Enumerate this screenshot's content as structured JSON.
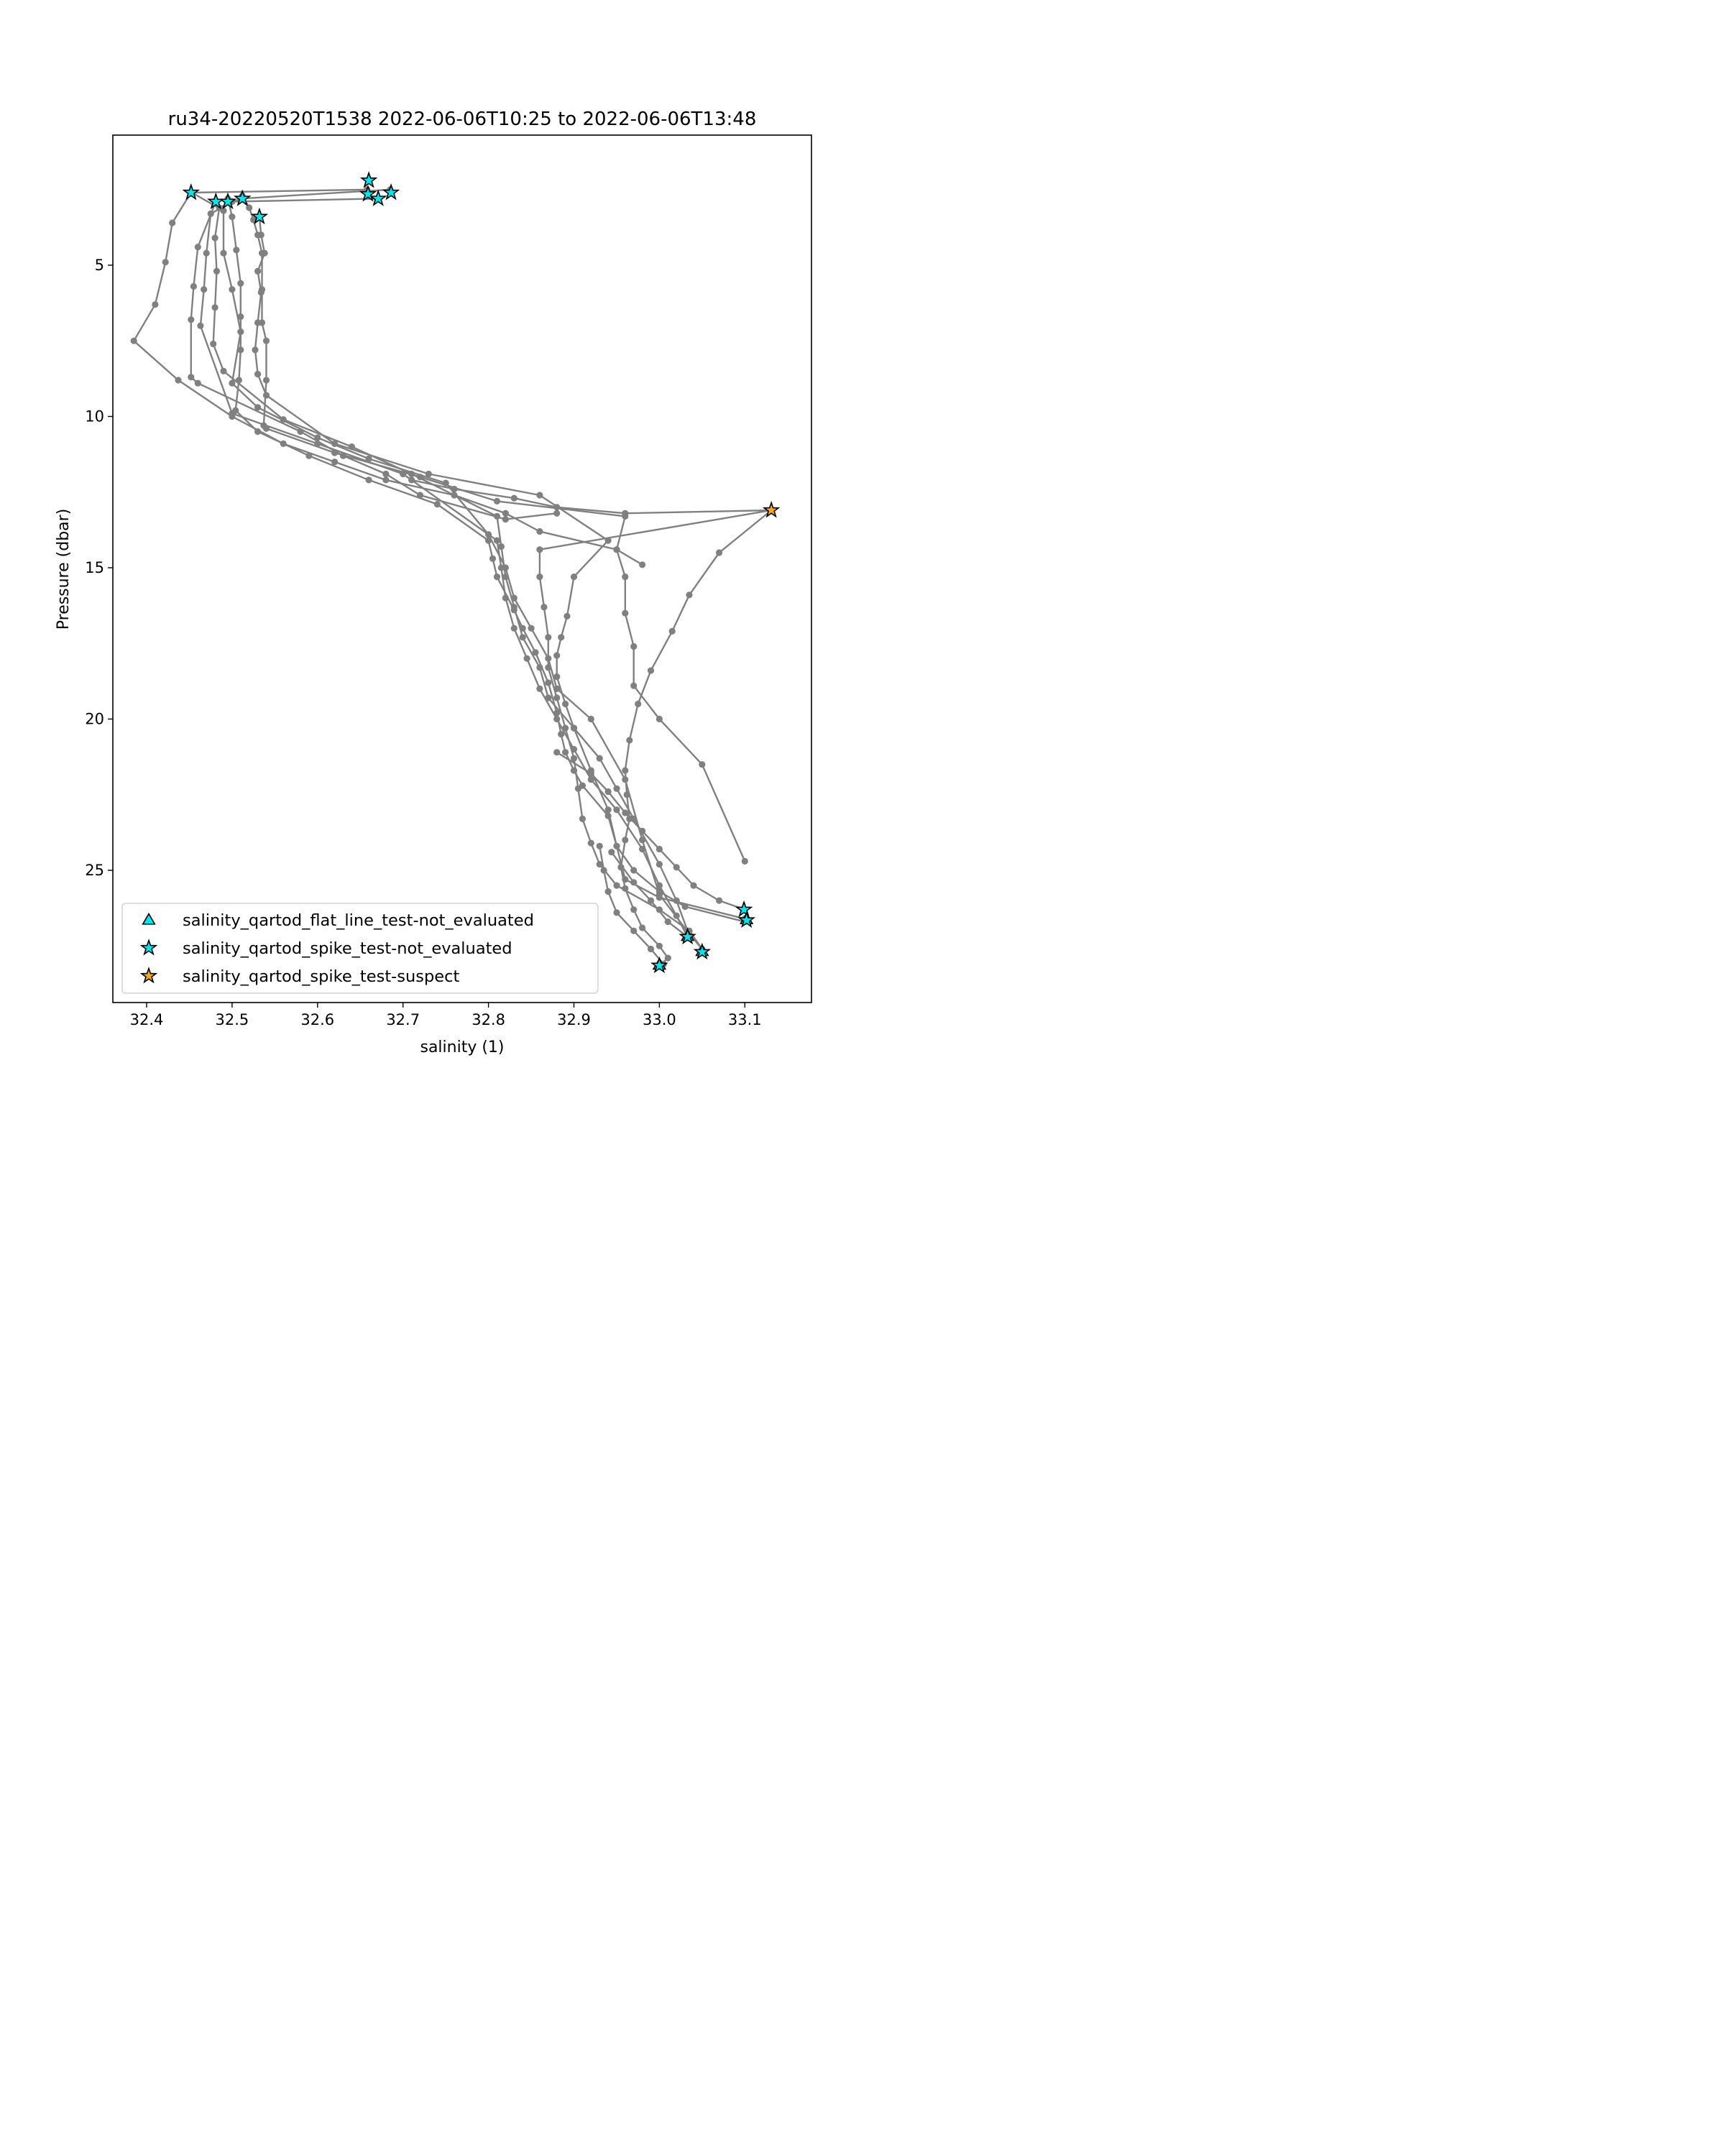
{
  "chart_data": {
    "type": "line",
    "title": "ru34-20220520T1538 2022-06-06T10:25 to 2022-06-06T13:48",
    "xlabel": "salinity (1)",
    "ylabel": "Pressure (dbar)",
    "xlim": [
      32.35,
      33.17
    ],
    "ylim": [
      29.3,
      0.7
    ],
    "y_inverted": true,
    "grid": false,
    "xticks": [
      32.4,
      32.5,
      32.6,
      32.7,
      32.8,
      32.9,
      33.0,
      33.1
    ],
    "xtick_labels": [
      "32.4",
      "32.5",
      "32.6",
      "32.7",
      "32.8",
      "32.9",
      "33.0",
      "33.1"
    ],
    "yticks": [
      5,
      10,
      15,
      20,
      25
    ],
    "ytick_labels": [
      "5",
      "10",
      "15",
      "20",
      "25"
    ],
    "line_color": "#808080",
    "legend_position": "lower left",
    "legend": [
      {
        "label": "salinity_qartod_flat_line_test-not_evaluated",
        "marker": "triangle",
        "color": "#00e5ee"
      },
      {
        "label": "salinity_qartod_spike_test-not_evaluated",
        "marker": "star",
        "color": "#00e5ee"
      },
      {
        "label": "salinity_qartod_spike_test-suspect",
        "marker": "star",
        "color": "#f5a623"
      }
    ],
    "series": [
      {
        "x": [
          32.452,
          32.43,
          32.422,
          32.41,
          32.385,
          32.437,
          32.5,
          32.56,
          32.62,
          32.68,
          32.76,
          32.82,
          32.86,
          32.95,
          32.98
        ],
        "y": [
          2.6,
          3.6,
          4.9,
          6.3,
          7.5,
          8.8,
          10.0,
          10.9,
          11.5,
          12.1,
          12.6,
          13.2,
          13.8,
          14.4,
          14.9
        ]
      },
      {
        "x": [
          32.481,
          32.46,
          32.455,
          32.452,
          32.452,
          32.46,
          32.58,
          32.63,
          32.68,
          32.72,
          32.82,
          32.88
        ],
        "y": [
          2.9,
          4.4,
          5.7,
          6.8,
          8.7,
          8.9,
          10.5,
          11.3,
          11.9,
          12.6,
          13.4,
          13.2
        ]
      },
      {
        "x": [
          32.67,
          32.5,
          32.475,
          32.47,
          32.467,
          32.463,
          32.5,
          32.6,
          32.7,
          32.81,
          32.815,
          32.82,
          32.83,
          32.845,
          32.86,
          32.88,
          32.9,
          32.92,
          32.95,
          32.98,
          33.0,
          33.02,
          33.033
        ],
        "y": [
          2.8,
          2.9,
          3.3,
          4.6,
          5.8,
          7.0,
          9.9,
          10.9,
          11.9,
          14.1,
          15.0,
          16.0,
          17.0,
          18.0,
          19.0,
          20.0,
          21.0,
          22.0,
          23.0,
          24.3,
          25.5,
          26.5,
          27.2
        ]
      },
      {
        "x": [
          32.685,
          32.51,
          32.485,
          32.48,
          32.482,
          32.48,
          32.478,
          32.49,
          32.56,
          32.64,
          32.71,
          32.81,
          32.815,
          32.82,
          32.83,
          32.84,
          32.86,
          32.87,
          32.9,
          32.93,
          32.95,
          32.97,
          33.0,
          33.02,
          33.033
        ],
        "y": [
          2.5,
          2.8,
          3.1,
          4.1,
          5.2,
          6.4,
          7.6,
          8.5,
          10.1,
          11.0,
          11.9,
          13.3,
          14.3,
          15.3,
          16.3,
          17.3,
          18.3,
          19.3,
          20.3,
          21.3,
          22.3,
          23.3,
          24.8,
          26.0,
          27.0
        ]
      },
      {
        "x": [
          32.658,
          32.453,
          32.49,
          32.49,
          32.5,
          32.51,
          32.5,
          32.53,
          32.6,
          32.66,
          32.75,
          32.8,
          32.82,
          32.83,
          32.85,
          32.87,
          32.88,
          32.92,
          32.96,
          32.98,
          33.0,
          33.035,
          33.05
        ],
        "y": [
          2.5,
          2.6,
          3.2,
          4.6,
          5.8,
          7.2,
          8.9,
          9.7,
          10.7,
          11.4,
          12.2,
          13.9,
          15.0,
          16.0,
          17.0,
          18.0,
          19.0,
          20.0,
          22.0,
          24.0,
          25.8,
          27.1,
          27.6
        ]
      },
      {
        "x": [
          32.495,
          32.5,
          32.505,
          32.51,
          32.51,
          32.51,
          32.508,
          32.504,
          32.53,
          32.59,
          32.66,
          32.74,
          32.8,
          32.805,
          32.81,
          32.83,
          32.84,
          32.855,
          32.87,
          32.88,
          32.885,
          32.89,
          32.9,
          32.91,
          32.94,
          32.95,
          32.96,
          33.0,
          33.1
        ],
        "y": [
          2.8,
          3.4,
          4.5,
          5.6,
          6.7,
          7.8,
          8.8,
          9.8,
          10.5,
          11.3,
          12.1,
          12.9,
          14.1,
          14.7,
          15.3,
          16.4,
          17.0,
          17.8,
          18.8,
          19.8,
          20.5,
          21.1,
          21.7,
          22.2,
          23.2,
          24.2,
          25.3,
          25.9,
          26.6
        ]
      },
      {
        "x": [
          32.512,
          32.52,
          32.525,
          32.53,
          32.535,
          32.535,
          32.535,
          32.54,
          32.54,
          32.537,
          32.54,
          32.62,
          32.72,
          32.81,
          32.96,
          32.95,
          32.96,
          32.96,
          32.97,
          32.97,
          33.0,
          33.05,
          33.1
        ],
        "y": [
          2.7,
          3.1,
          3.5,
          4.0,
          4.6,
          5.8,
          6.9,
          7.5,
          8.8,
          10.3,
          10.4,
          11.2,
          12.0,
          12.8,
          13.3,
          14.4,
          15.3,
          16.5,
          17.6,
          18.9,
          20.0,
          21.5,
          24.7
        ]
      },
      {
        "x": [
          32.532,
          32.534,
          32.538,
          32.53,
          32.534,
          32.53,
          32.527,
          32.53,
          32.54,
          32.62,
          32.73,
          32.86,
          32.94,
          32.9,
          32.892,
          32.885,
          32.88,
          32.88,
          32.89,
          32.9,
          32.92,
          32.94,
          32.95,
          32.97,
          33.0,
          33.03,
          33.1
        ],
        "y": [
          3.4,
          4.0,
          4.6,
          5.2,
          5.9,
          6.9,
          7.8,
          8.6,
          9.3,
          10.9,
          11.9,
          12.6,
          14.1,
          15.3,
          16.6,
          17.3,
          17.9,
          18.6,
          19.5,
          20.3,
          21.7,
          23.0,
          24.2,
          25.0,
          25.7,
          26.2,
          26.7
        ]
      },
      {
        "x": [
          32.71,
          32.76,
          32.83,
          32.88,
          32.96,
          33.131,
          32.86,
          32.86,
          32.865,
          32.87,
          32.87,
          32.88,
          32.89,
          32.9,
          32.905,
          32.91,
          32.92,
          32.93,
          32.95,
          33.0,
          33.035,
          33.05
        ],
        "y": [
          12.1,
          12.4,
          12.7,
          13.0,
          13.2,
          13.1,
          14.4,
          15.3,
          16.3,
          17.3,
          18.3,
          19.3,
          20.3,
          21.3,
          22.3,
          23.3,
          24.1,
          24.8,
          25.5,
          26.3,
          27.0,
          27.6
        ]
      },
      {
        "x": [
          33.131,
          33.07,
          33.035,
          33.015,
          32.99,
          32.975,
          32.965,
          32.96,
          32.962,
          32.965,
          32.96,
          32.955,
          32.96,
          32.97,
          32.98,
          33.0,
          33.01,
          33.002
        ],
        "y": [
          13.1,
          14.5,
          15.9,
          17.1,
          18.4,
          19.5,
          20.7,
          21.7,
          22.5,
          23.3,
          24.0,
          24.9,
          25.6,
          26.3,
          26.9,
          27.5,
          27.9,
          28.1
        ]
      },
      {
        "x": [
          32.88,
          32.92,
          32.94,
          32.96,
          32.98,
          33.0,
          33.02,
          33.04,
          33.07,
          33.1
        ],
        "y": [
          21.1,
          21.8,
          22.4,
          23.1,
          23.7,
          24.3,
          24.9,
          25.5,
          26.0,
          26.3
        ]
      },
      {
        "x": [
          32.93,
          32.935,
          32.94,
          32.95,
          32.97,
          32.99,
          33.005
        ],
        "y": [
          24.2,
          25.0,
          25.7,
          26.4,
          27.0,
          27.6,
          28.1
        ]
      },
      {
        "x": [
          32.944,
          32.97,
          32.99,
          33.01,
          33.033
        ],
        "y": [
          24.4,
          25.4,
          26.0,
          26.7,
          27.2
        ]
      }
    ],
    "flagged_points": [
      {
        "x": 32.452,
        "y": 2.6,
        "marker": "star",
        "flag": "salinity_qartod_spike_test-not_evaluated"
      },
      {
        "x": 32.481,
        "y": 2.9,
        "marker": "star",
        "flag": "salinity_qartod_spike_test-not_evaluated"
      },
      {
        "x": 32.495,
        "y": 2.9,
        "marker": "star",
        "flag": "salinity_qartod_spike_test-not_evaluated"
      },
      {
        "x": 32.512,
        "y": 2.8,
        "marker": "star",
        "flag": "salinity_qartod_spike_test-not_evaluated"
      },
      {
        "x": 32.532,
        "y": 3.4,
        "marker": "star",
        "flag": "salinity_qartod_spike_test-not_evaluated"
      },
      {
        "x": 32.66,
        "y": 2.2,
        "marker": "star",
        "flag": "salinity_qartod_spike_test-not_evaluated"
      },
      {
        "x": 32.659,
        "y": 2.65,
        "marker": "star",
        "flag": "salinity_qartod_spike_test-not_evaluated"
      },
      {
        "x": 32.671,
        "y": 2.8,
        "marker": "star",
        "flag": "salinity_qartod_spike_test-not_evaluated"
      },
      {
        "x": 32.686,
        "y": 2.6,
        "marker": "star",
        "flag": "salinity_qartod_spike_test-not_evaluated"
      },
      {
        "x": 33.131,
        "y": 13.1,
        "marker": "star",
        "flag": "salinity_qartod_spike_test-suspect"
      },
      {
        "x": 33.099,
        "y": 26.3,
        "marker": "star",
        "flag": "salinity_qartod_spike_test-not_evaluated"
      },
      {
        "x": 33.102,
        "y": 26.65,
        "marker": "triangle",
        "flag": "salinity_qartod_flat_line_test-not_evaluated"
      },
      {
        "x": 33.102,
        "y": 26.65,
        "marker": "star",
        "flag": "salinity_qartod_spike_test-not_evaluated"
      },
      {
        "x": 33.033,
        "y": 27.2,
        "marker": "triangle",
        "flag": "salinity_qartod_flat_line_test-not_evaluated"
      },
      {
        "x": 33.033,
        "y": 27.2,
        "marker": "star",
        "flag": "salinity_qartod_spike_test-not_evaluated"
      },
      {
        "x": 33.05,
        "y": 27.7,
        "marker": "triangle",
        "flag": "salinity_qartod_flat_line_test-not_evaluated"
      },
      {
        "x": 33.05,
        "y": 27.7,
        "marker": "star",
        "flag": "salinity_qartod_spike_test-not_evaluated"
      },
      {
        "x": 33.0,
        "y": 28.15,
        "marker": "triangle",
        "flag": "salinity_qartod_flat_line_test-not_evaluated"
      },
      {
        "x": 33.0,
        "y": 28.15,
        "marker": "star",
        "flag": "salinity_qartod_spike_test-not_evaluated"
      }
    ]
  }
}
